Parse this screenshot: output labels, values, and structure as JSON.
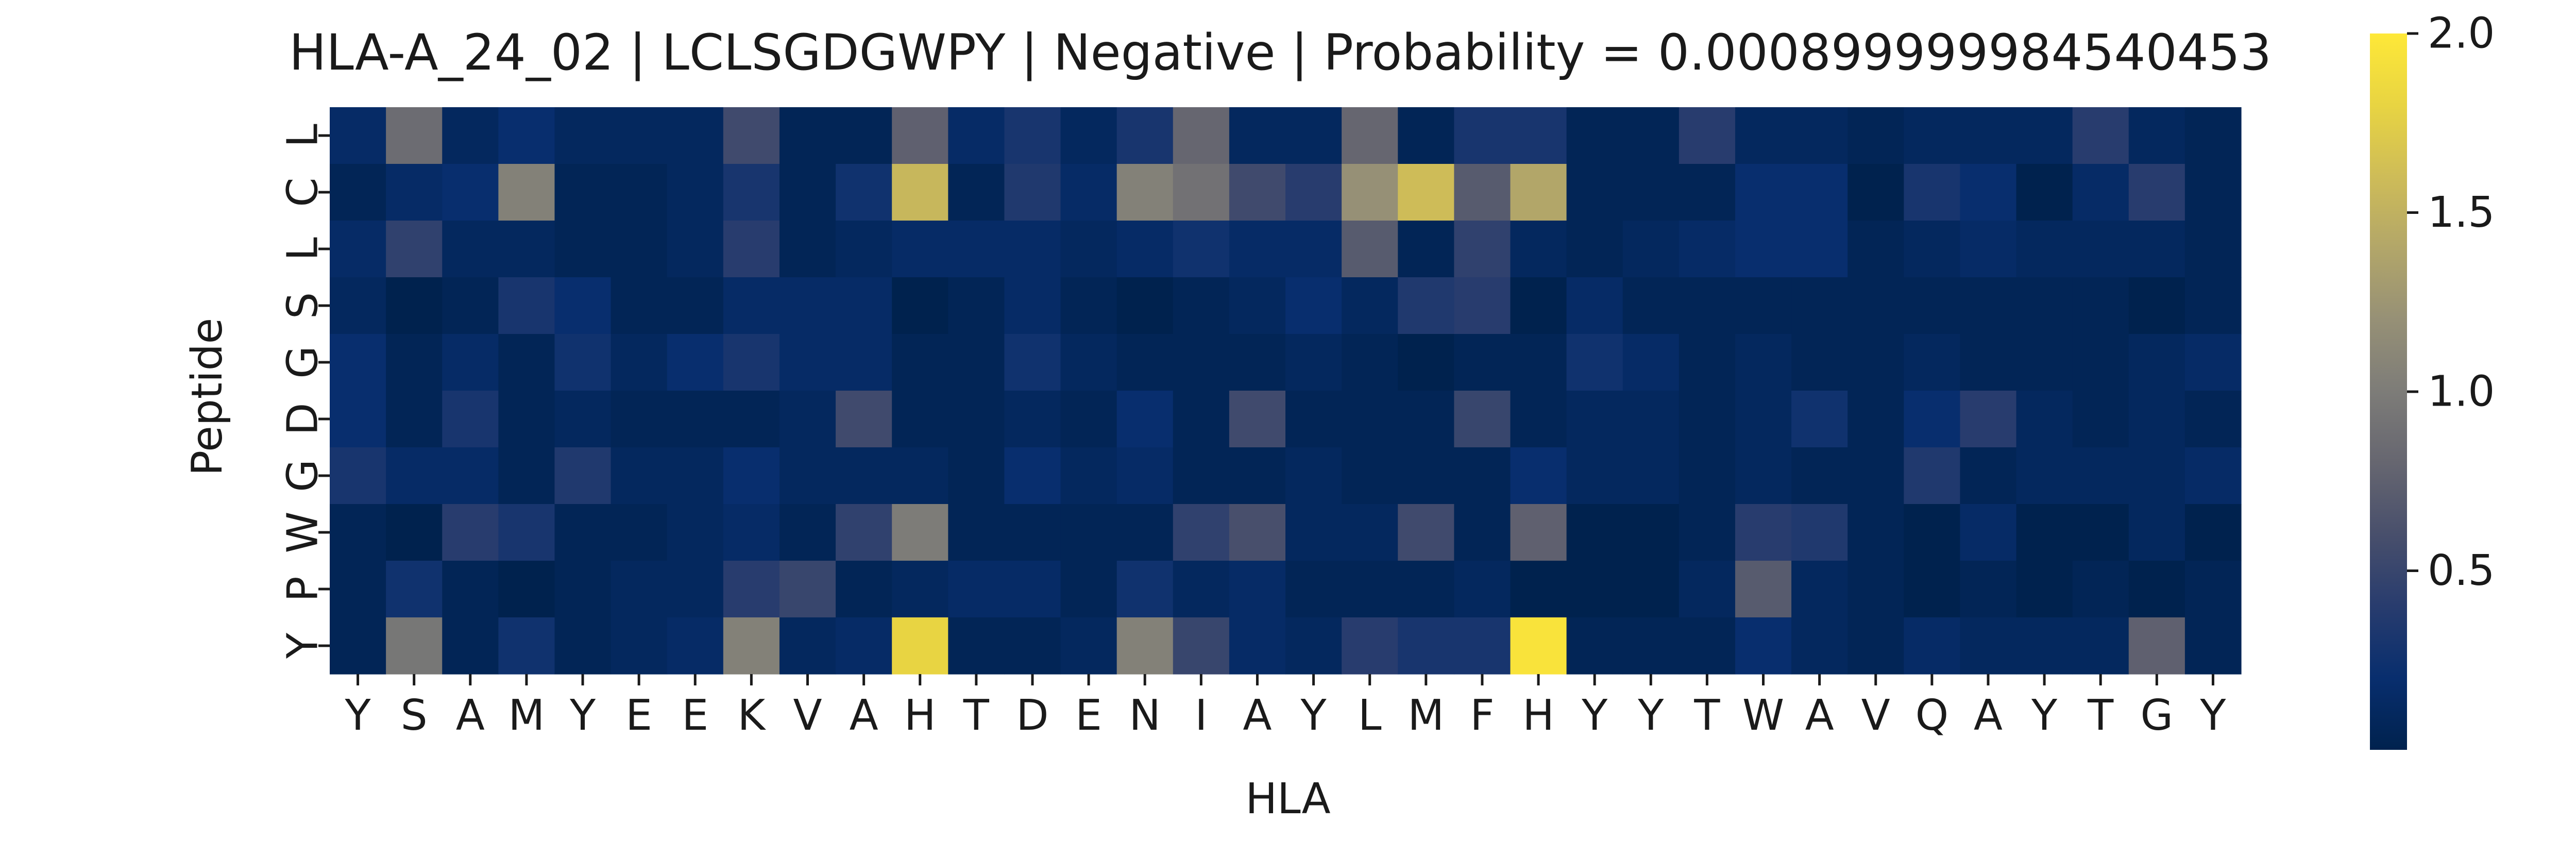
{
  "chart_data": {
    "type": "heatmap",
    "title": "HLA-A_24_02 | LCLSGDGWPY | Negative | Probability = 0.000899999984540453",
    "xlabel": "HLA",
    "ylabel": "Peptide",
    "x_tick_labels": [
      "Y",
      "S",
      "A",
      "M",
      "Y",
      "E",
      "E",
      "K",
      "V",
      "A",
      "H",
      "T",
      "D",
      "E",
      "N",
      "I",
      "A",
      "Y",
      "L",
      "M",
      "F",
      "H",
      "Y",
      "Y",
      "T",
      "W",
      "A",
      "V",
      "Q",
      "A",
      "Y",
      "T",
      "G",
      "Y"
    ],
    "y_tick_labels": [
      "L",
      "C",
      "L",
      "S",
      "G",
      "D",
      "G",
      "W",
      "P",
      "Y"
    ],
    "colormap": "cividis",
    "colorbar": {
      "ticks": [
        0.5,
        1.0,
        1.5,
        2.0
      ],
      "tick_labels": [
        "0.5",
        "1.0",
        "1.5",
        "2.0"
      ],
      "min": 0.0,
      "max": 2.0
    },
    "values": [
      [
        0.15,
        0.85,
        0.1,
        0.2,
        0.1,
        0.1,
        0.1,
        0.55,
        0.05,
        0.05,
        0.75,
        0.15,
        0.3,
        0.1,
        0.3,
        0.8,
        0.1,
        0.1,
        0.8,
        0.05,
        0.3,
        0.3,
        0.05,
        0.05,
        0.4,
        0.1,
        0.1,
        0.05,
        0.1,
        0.1,
        0.1,
        0.4,
        0.1,
        0.05
      ],
      [
        0.05,
        0.15,
        0.2,
        1.05,
        0.05,
        0.05,
        0.1,
        0.3,
        0.05,
        0.25,
        1.55,
        0.05,
        0.35,
        0.15,
        1.05,
        0.9,
        0.55,
        0.4,
        1.2,
        1.6,
        0.7,
        1.4,
        0.05,
        0.05,
        0.05,
        0.2,
        0.2,
        0.0,
        0.3,
        0.2,
        0.0,
        0.15,
        0.4,
        0.05
      ],
      [
        0.15,
        0.45,
        0.1,
        0.1,
        0.05,
        0.05,
        0.1,
        0.4,
        0.05,
        0.1,
        0.15,
        0.15,
        0.15,
        0.1,
        0.15,
        0.25,
        0.15,
        0.15,
        0.7,
        0.05,
        0.45,
        0.1,
        0.05,
        0.1,
        0.15,
        0.2,
        0.2,
        0.05,
        0.1,
        0.15,
        0.1,
        0.1,
        0.1,
        0.05
      ],
      [
        0.1,
        0.0,
        0.05,
        0.3,
        0.2,
        0.05,
        0.05,
        0.15,
        0.15,
        0.15,
        0.0,
        0.05,
        0.15,
        0.05,
        0.0,
        0.05,
        0.1,
        0.2,
        0.1,
        0.35,
        0.4,
        0.0,
        0.15,
        0.05,
        0.05,
        0.05,
        0.05,
        0.05,
        0.05,
        0.05,
        0.05,
        0.05,
        0.0,
        0.05
      ],
      [
        0.2,
        0.05,
        0.15,
        0.05,
        0.25,
        0.1,
        0.2,
        0.3,
        0.15,
        0.15,
        0.05,
        0.05,
        0.25,
        0.1,
        0.05,
        0.05,
        0.05,
        0.1,
        0.05,
        0.0,
        0.05,
        0.05,
        0.25,
        0.15,
        0.05,
        0.1,
        0.05,
        0.05,
        0.1,
        0.05,
        0.05,
        0.05,
        0.1,
        0.15
      ],
      [
        0.2,
        0.05,
        0.3,
        0.05,
        0.1,
        0.05,
        0.05,
        0.05,
        0.1,
        0.55,
        0.05,
        0.05,
        0.1,
        0.05,
        0.2,
        0.05,
        0.55,
        0.05,
        0.05,
        0.05,
        0.5,
        0.05,
        0.1,
        0.1,
        0.05,
        0.1,
        0.25,
        0.05,
        0.2,
        0.4,
        0.1,
        0.05,
        0.1,
        0.05
      ],
      [
        0.3,
        0.15,
        0.15,
        0.05,
        0.35,
        0.1,
        0.1,
        0.2,
        0.1,
        0.1,
        0.1,
        0.05,
        0.2,
        0.1,
        0.15,
        0.05,
        0.05,
        0.1,
        0.05,
        0.05,
        0.05,
        0.2,
        0.1,
        0.1,
        0.05,
        0.1,
        0.05,
        0.05,
        0.35,
        0.05,
        0.1,
        0.1,
        0.1,
        0.15
      ],
      [
        0.05,
        0.0,
        0.4,
        0.3,
        0.05,
        0.05,
        0.1,
        0.15,
        0.05,
        0.45,
        1.0,
        0.05,
        0.05,
        0.05,
        0.05,
        0.45,
        0.6,
        0.1,
        0.1,
        0.55,
        0.05,
        0.75,
        0.0,
        0.0,
        0.05,
        0.4,
        0.35,
        0.05,
        0.0,
        0.15,
        0.0,
        0.0,
        0.1,
        0.0
      ],
      [
        0.05,
        0.25,
        0.05,
        0.0,
        0.05,
        0.1,
        0.1,
        0.4,
        0.5,
        0.05,
        0.1,
        0.15,
        0.15,
        0.05,
        0.25,
        0.1,
        0.15,
        0.05,
        0.05,
        0.05,
        0.1,
        0.0,
        0.0,
        0.0,
        0.1,
        0.7,
        0.1,
        0.05,
        0.0,
        0.05,
        0.0,
        0.05,
        0.0,
        0.05
      ],
      [
        0.05,
        0.95,
        0.05,
        0.25,
        0.05,
        0.1,
        0.15,
        1.05,
        0.1,
        0.15,
        1.8,
        0.05,
        0.05,
        0.1,
        1.05,
        0.5,
        0.15,
        0.1,
        0.4,
        0.3,
        0.3,
        1.95,
        0.05,
        0.05,
        0.05,
        0.2,
        0.1,
        0.05,
        0.15,
        0.1,
        0.1,
        0.1,
        0.75,
        0.05
      ]
    ]
  }
}
